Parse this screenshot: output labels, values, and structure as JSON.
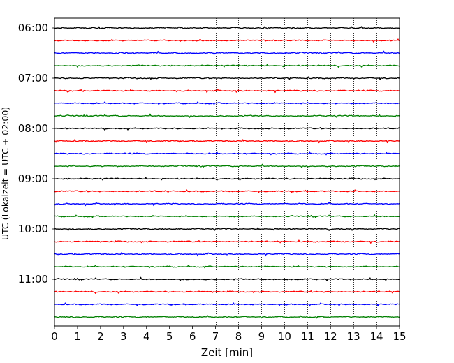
{
  "chart_data": {
    "type": "line",
    "title": "",
    "xlabel": "Zeit  [min]",
    "ylabel": "UTC (Lokalzeit = UTC + 02:00)",
    "xlim": [
      0,
      15
    ],
    "x_ticks": [
      0,
      1,
      2,
      3,
      4,
      5,
      6,
      7,
      8,
      9,
      10,
      11,
      12,
      13,
      14,
      15
    ],
    "x_tick_labels": [
      "0",
      "1",
      "2",
      "3",
      "4",
      "5",
      "6",
      "7",
      "8",
      "9",
      "10",
      "11",
      "12",
      "13",
      "14",
      "15"
    ],
    "y_tick_labels": [
      "06:00",
      "07:00",
      "08:00",
      "09:00",
      "10:00",
      "11:00"
    ],
    "grid": "vertical dotted at each minute",
    "trace_interval_minutes": 15,
    "trace_colors": [
      "#000000",
      "#ff0000",
      "#0000ff",
      "#008000"
    ],
    "traces": [
      {
        "start": "06:00"
      },
      {
        "start": "06:15"
      },
      {
        "start": "06:30"
      },
      {
        "start": "06:45"
      },
      {
        "start": "07:00"
      },
      {
        "start": "07:15"
      },
      {
        "start": "07:30"
      },
      {
        "start": "07:45"
      },
      {
        "start": "08:00"
      },
      {
        "start": "08:15"
      },
      {
        "start": "08:30"
      },
      {
        "start": "08:45"
      },
      {
        "start": "09:00"
      },
      {
        "start": "09:15"
      },
      {
        "start": "09:30"
      },
      {
        "start": "09:45"
      },
      {
        "start": "10:00"
      },
      {
        "start": "10:15"
      },
      {
        "start": "10:30"
      },
      {
        "start": "10:45"
      },
      {
        "start": "11:00"
      },
      {
        "start": "11:15"
      },
      {
        "start": "11:30"
      },
      {
        "start": "11:45"
      }
    ]
  }
}
